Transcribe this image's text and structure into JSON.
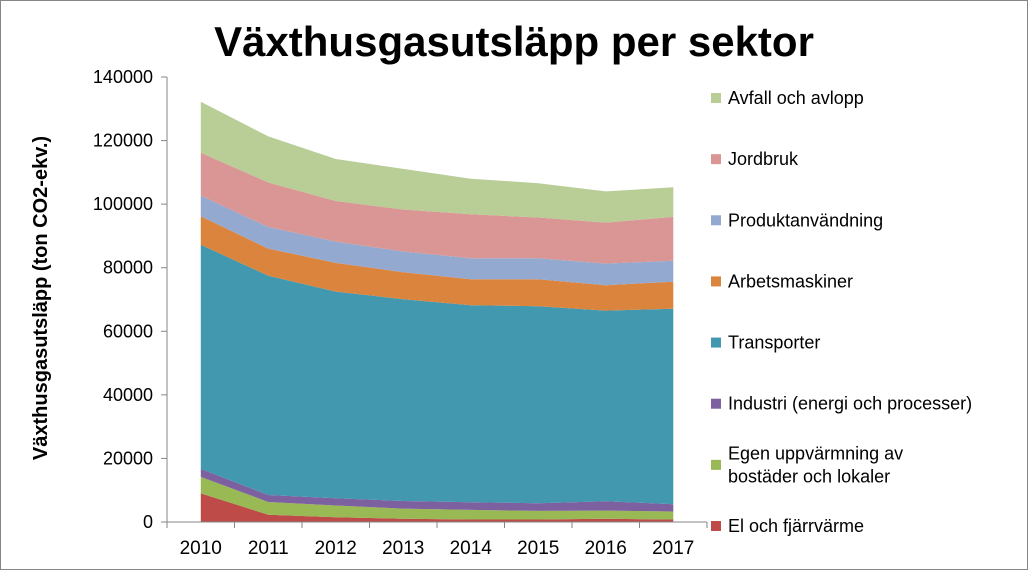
{
  "chart_data": {
    "type": "area",
    "stacked": true,
    "title": "Växthusgasutsläpp per sektor",
    "xlabel": "",
    "ylabel": "Växthusgasutsläpp (ton CO2-ekv.)",
    "ylim": [
      0,
      140000
    ],
    "yticks": [
      "0",
      "20000",
      "40000",
      "60000",
      "80000",
      "100000",
      "120000",
      "140000"
    ],
    "yticks_values": [
      0,
      20000,
      40000,
      60000,
      80000,
      100000,
      120000,
      140000
    ],
    "x": [
      "2010",
      "2011",
      "2012",
      "2013",
      "2014",
      "2015",
      "2016",
      "2017"
    ],
    "grid": false,
    "legend_position": "right",
    "series": [
      {
        "name": "El och fjärrvärme",
        "color": "#be4b48",
        "values": [
          9000,
          2300,
          1500,
          1000,
          800,
          800,
          1000,
          800
        ]
      },
      {
        "name": "Egen uppvärmning av bostäder och lokaler",
        "color": "#98b954",
        "values": [
          5200,
          4000,
          3700,
          3200,
          3000,
          2700,
          2600,
          2500
        ]
      },
      {
        "name": "Industri (energi och processer)",
        "color": "#7d60a0",
        "values": [
          2500,
          2200,
          2300,
          2400,
          2400,
          2400,
          2900,
          2300
        ]
      },
      {
        "name": "Transporter",
        "color": "#4198af",
        "values": [
          70500,
          69000,
          65000,
          63500,
          62000,
          62000,
          60000,
          61500
        ]
      },
      {
        "name": "Arbetsmaskiner",
        "color": "#db843d",
        "values": [
          9000,
          8500,
          9000,
          8500,
          8200,
          8500,
          8000,
          8500
        ]
      },
      {
        "name": "Produktanvändning",
        "color": "#93a9cf",
        "values": [
          6500,
          6800,
          6700,
          6500,
          6600,
          6600,
          6800,
          6600
        ]
      },
      {
        "name": "Jordbruk",
        "color": "#d99694",
        "values": [
          13500,
          14000,
          12800,
          13200,
          13800,
          12800,
          12900,
          13800
        ]
      },
      {
        "name": "Avfall och avlopp",
        "color": "#b9cd96",
        "values": [
          16000,
          14500,
          13200,
          12800,
          11200,
          10800,
          9800,
          9300
        ]
      }
    ],
    "legend": [
      {
        "label_lines": [
          "Avfall och avlopp"
        ],
        "color": "#b9cd96"
      },
      {
        "label_lines": [
          "Jordbruk"
        ],
        "color": "#d99694"
      },
      {
        "label_lines": [
          "Produktanvändning"
        ],
        "color": "#93a9cf"
      },
      {
        "label_lines": [
          "Arbetsmaskiner"
        ],
        "color": "#db843d"
      },
      {
        "label_lines": [
          "Transporter"
        ],
        "color": "#4198af"
      },
      {
        "label_lines": [
          "Industri (energi och processer)"
        ],
        "color": "#7d60a0"
      },
      {
        "label_lines": [
          "Egen uppvärmning av",
          "bostäder och lokaler"
        ],
        "color": "#98b954"
      },
      {
        "label_lines": [
          "El och fjärrvärme"
        ],
        "color": "#be4b48"
      }
    ]
  }
}
